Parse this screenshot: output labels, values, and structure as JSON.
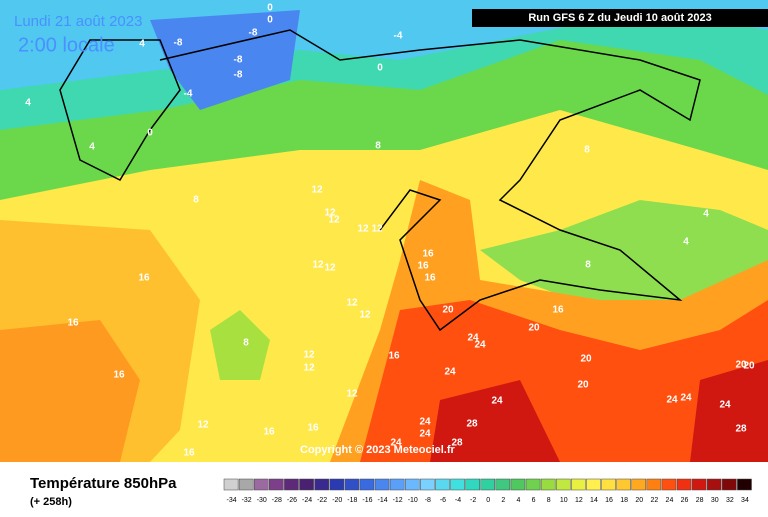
{
  "header": {
    "date": "Lundi 21 août 2023",
    "time": "2:00 locale",
    "run": "Run GFS 6 Z du Jeudi 10 août 2023"
  },
  "copyright": "Copyright © 2023 Meteociel.fr",
  "footer": {
    "title": "Température 850hPa",
    "lead": "(+ 258h)"
  },
  "colorbar": {
    "ticks": [
      -34,
      -32,
      -30,
      -28,
      -26,
      -24,
      -22,
      -20,
      -18,
      -16,
      -14,
      -12,
      -10,
      -8,
      -6,
      -4,
      -2,
      0,
      2,
      4,
      6,
      8,
      10,
      12,
      14,
      16,
      18,
      20,
      22,
      24,
      26,
      28,
      30,
      32,
      34
    ],
    "colors": [
      "#d0d0d0",
      "#a8a8a8",
      "#9a6aa0",
      "#7d3f8a",
      "#5c2a78",
      "#4a2070",
      "#3a2a90",
      "#2a3ab0",
      "#3050c8",
      "#3a6ae0",
      "#4a86f0",
      "#5aa0f8",
      "#6ab8ff",
      "#7ad0ff",
      "#5ad8f0",
      "#40e0e0",
      "#30d8c0",
      "#30d0a0",
      "#40c880",
      "#50c860",
      "#70d050",
      "#98dc40",
      "#c0e840",
      "#e8f040",
      "#fff050",
      "#ffe040",
      "#ffc830",
      "#ffa820",
      "#ff8010",
      "#ff5010",
      "#f03010",
      "#d01810",
      "#a81010",
      "#800808",
      "#200000"
    ]
  },
  "contour_labels": [
    0,
    0,
    0,
    0,
    -8,
    -8,
    -8,
    -8,
    -4,
    -4,
    4,
    4,
    4,
    4,
    4,
    8,
    8,
    8,
    8,
    8,
    12,
    12,
    12,
    12,
    12,
    12,
    12,
    12,
    12,
    12,
    12,
    12,
    12,
    16,
    16,
    16,
    16,
    16,
    16,
    16,
    16,
    16,
    16,
    16,
    20,
    20,
    20,
    20,
    20,
    20,
    24,
    24,
    24,
    24,
    24,
    24,
    24,
    24,
    24,
    24,
    28,
    28,
    28
  ]
}
